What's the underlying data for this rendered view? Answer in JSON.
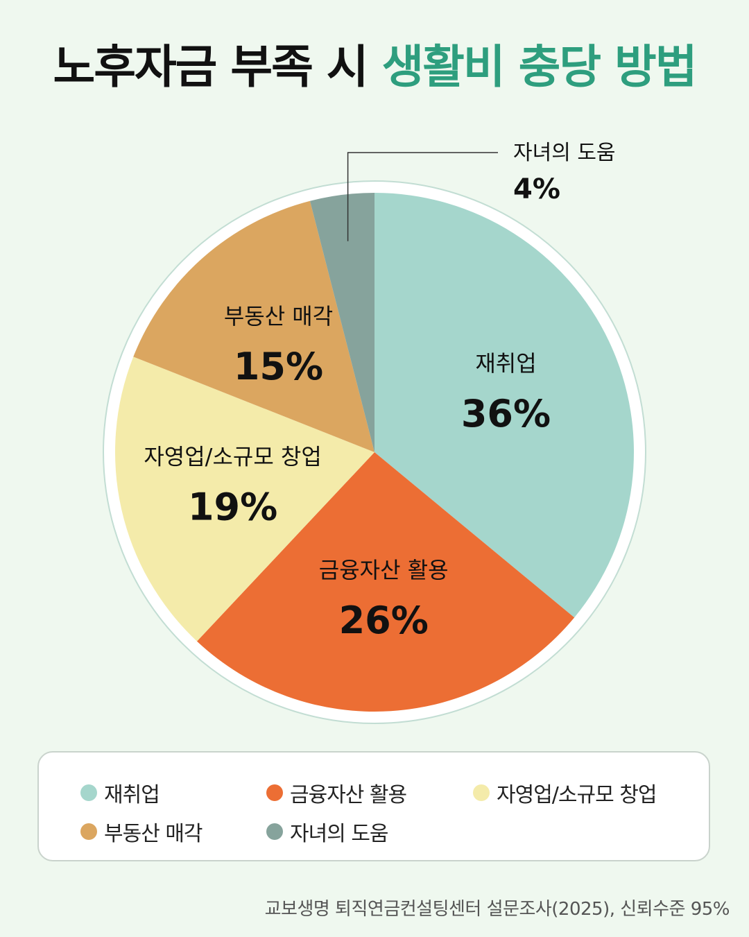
{
  "title": {
    "part1": "노후자금 부족 시",
    "part2": "생활비 충당 방법"
  },
  "chart_data": {
    "type": "pie",
    "categories": [
      "재취업",
      "금융자산 활용",
      "자영업/소규모 창업",
      "부동산 매각",
      "자녀의 도움"
    ],
    "values": [
      36,
      26,
      19,
      15,
      4
    ],
    "labels": [
      "36%",
      "26%",
      "19%",
      "15%",
      "4%"
    ],
    "colors": [
      "#A5D6CC",
      "#EC6E34",
      "#F4EBAA",
      "#DBA660",
      "#86A39C"
    ],
    "legend": [
      {
        "label": "재취업",
        "color": "#A5D6CC"
      },
      {
        "label": "금융자산 활용",
        "color": "#EC6E34"
      },
      {
        "label": "자영업/소규모 창업",
        "color": "#F4EBAA"
      },
      {
        "label": "부동산 매각",
        "color": "#DBA660"
      },
      {
        "label": "자녀의 도움",
        "color": "#86A39C"
      }
    ]
  },
  "source": "교보생명 퇴직연금컨설팅센터 설문조사(2025), 신뢰수준 95%"
}
